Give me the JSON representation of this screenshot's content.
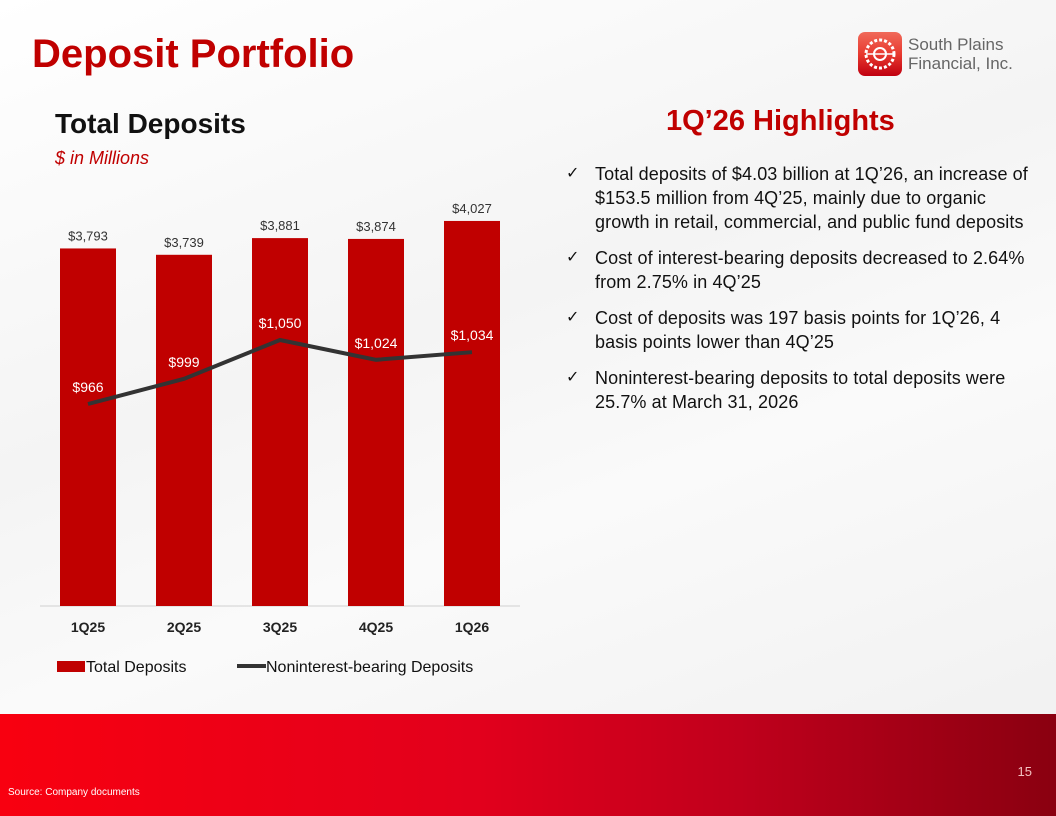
{
  "title": "Deposit Portfolio",
  "logo": {
    "line1": "South Plains",
    "line2": "Financial, Inc."
  },
  "chart_title": "Total Deposits",
  "units": "$ in Millions",
  "highlights": {
    "title": "1Q’26 Highlights",
    "items": [
      "Total deposits of $4.03 billion at 1Q’26, an increase of $153.5 million from 4Q’25, mainly due to organic growth in retail, commercial, and public fund deposits",
      "Cost of interest-bearing deposits decreased to 2.64% from 2.75% in 4Q’25",
      "Cost of deposits was 197 basis points for 1Q’26, 4 basis points lower than 4Q’25",
      "Noninterest-bearing deposits to total deposits were 25.7% at March 31, 2026"
    ]
  },
  "check": "✓",
  "page_number": "15",
  "source": "Source: Company documents",
  "chart_data": {
    "type": "bar",
    "categories": [
      "1Q25",
      "2Q25",
      "3Q25",
      "4Q25",
      "1Q26"
    ],
    "series": [
      {
        "name": "Total Deposits",
        "type": "bar",
        "color": "#c00000",
        "values": [
          3793,
          3739,
          3881,
          3874,
          4027
        ],
        "labels": [
          "$3,793",
          "$3,739",
          "$3,881",
          "$3,874",
          "$4,027"
        ]
      },
      {
        "name": "Noninterest-bearing Deposits",
        "type": "line",
        "color": "#333333",
        "values": [
          966,
          999,
          1050,
          1024,
          1034
        ],
        "labels": [
          "$966",
          "$999",
          "$1,050",
          "$1,024",
          "$1,034"
        ]
      }
    ],
    "legend": "bottom"
  }
}
